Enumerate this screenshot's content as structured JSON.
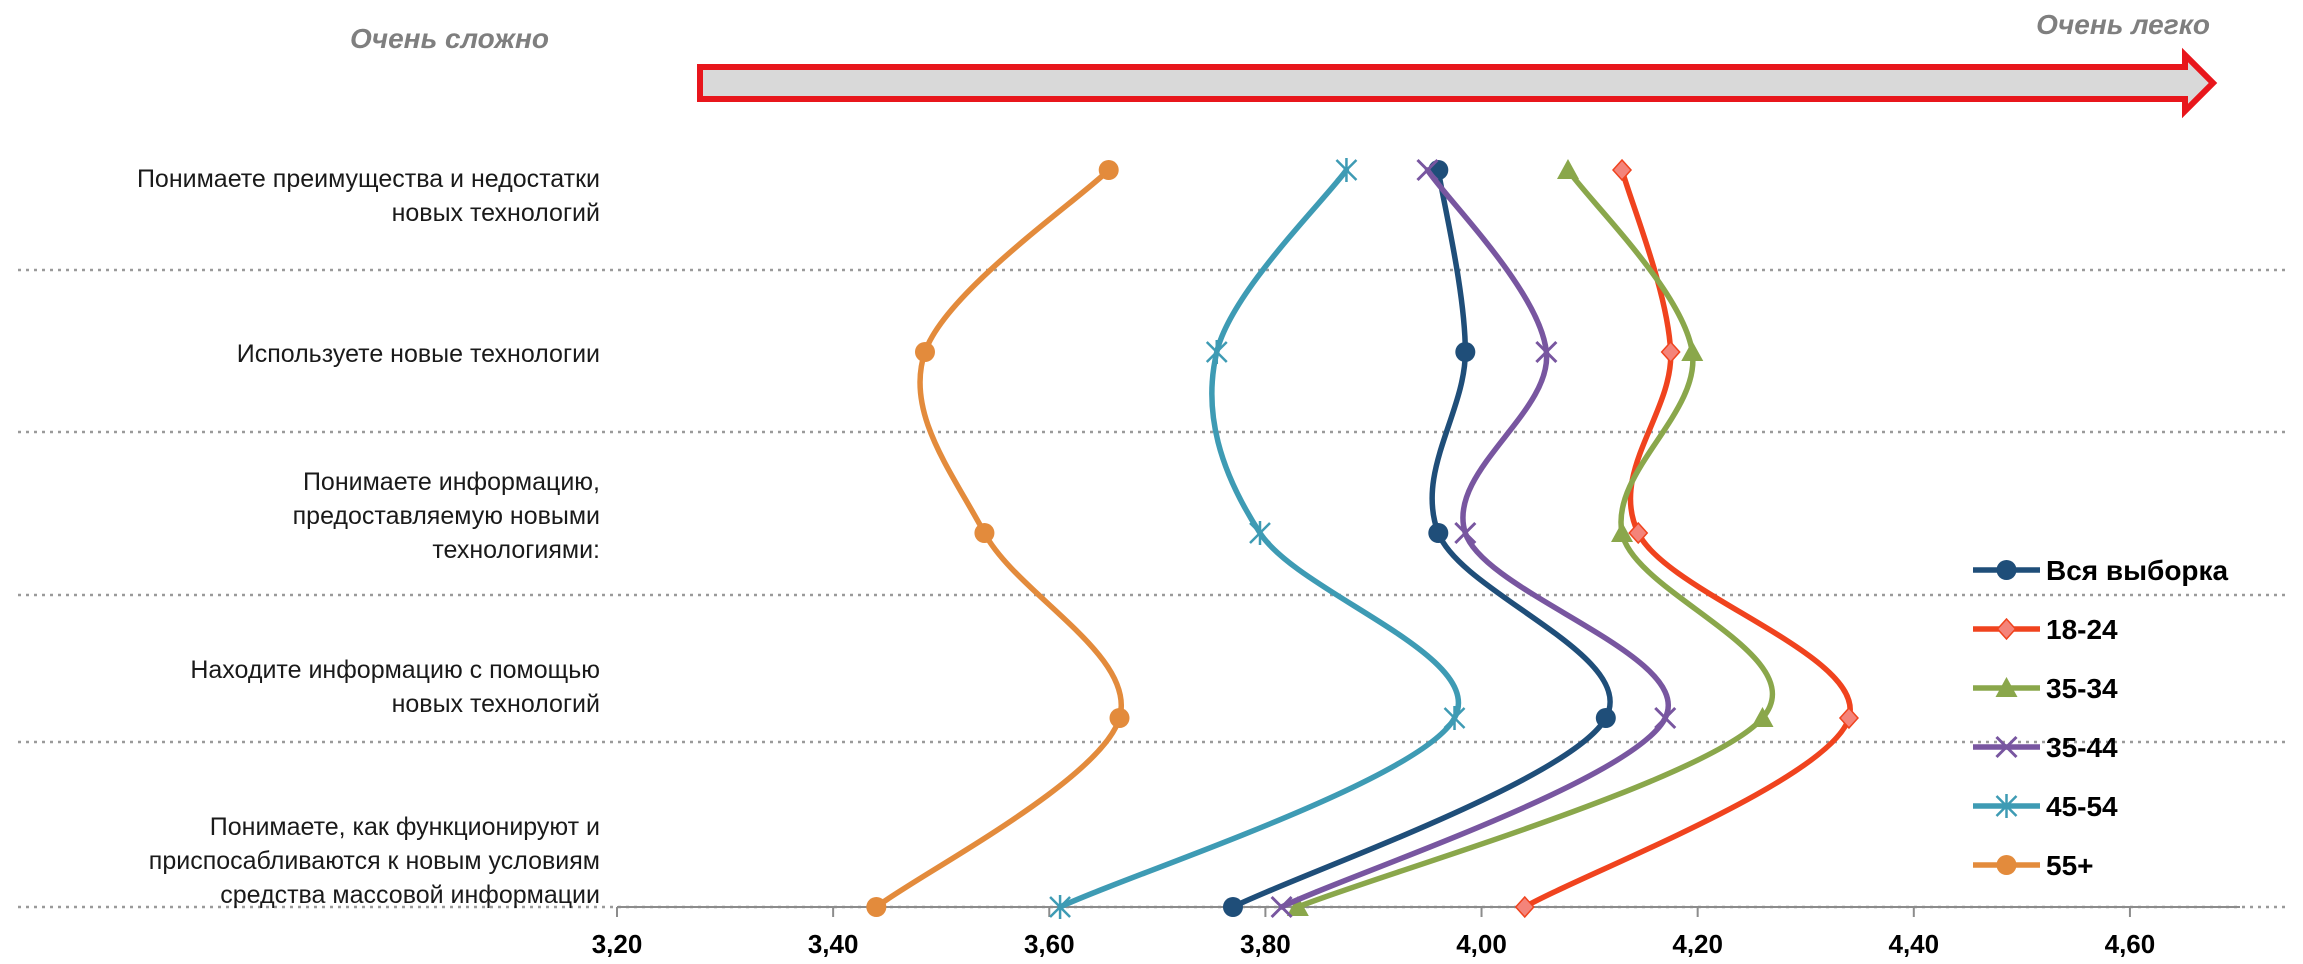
{
  "header": {
    "left_label": "Очень сложно",
    "right_label": "Очень легко",
    "arrow_color": "#e8161c",
    "arrow_fill": "#d9d9d9"
  },
  "chart_data": {
    "type": "line",
    "orientation": "horizontal-values",
    "categories": [
      [
        "Понимаете преимущества и недостатки",
        "новых технологий"
      ],
      [
        "Используете новые технологии"
      ],
      [
        "Понимаете информацию,",
        "предоставляемую новыми",
        "технологиями:"
      ],
      [
        "Находите информацию с помощью",
        "новых технологий"
      ],
      [
        "Понимаете, как функционируют и",
        "приспосабливаются к новым условиям",
        "средства массовой информации"
      ]
    ],
    "xlim": [
      3.2,
      4.7
    ],
    "ticks": [
      3.2,
      3.4,
      3.6,
      3.8,
      4.0,
      4.2,
      4.4,
      4.6
    ],
    "tick_labels": [
      "3,20",
      "3,40",
      "3,60",
      "3,80",
      "4,00",
      "4,20",
      "4,40",
      "4,60"
    ],
    "grid": "horizontal-dotted",
    "legend_position": "right",
    "series": [
      {
        "name": "Вся выборка",
        "color": "#1f4e79",
        "marker": "circle",
        "values": [
          3.96,
          3.985,
          3.96,
          4.115,
          3.77
        ]
      },
      {
        "name": "18-24",
        "color": "#f0431e",
        "marker": "diamond",
        "values": [
          4.13,
          4.175,
          4.145,
          4.34,
          4.04
        ]
      },
      {
        "name": "35-34",
        "color": "#8aa74b",
        "marker": "triangle",
        "values": [
          4.08,
          4.195,
          4.13,
          4.26,
          3.83
        ]
      },
      {
        "name": "35-44",
        "color": "#7856a0",
        "marker": "x",
        "values": [
          3.95,
          4.06,
          3.985,
          4.17,
          3.815
        ]
      },
      {
        "name": "45-54",
        "color": "#3e9bb4",
        "marker": "star",
        "values": [
          3.875,
          3.755,
          3.795,
          3.975,
          3.61
        ]
      },
      {
        "name": "55+",
        "color": "#e38b3c",
        "marker": "circle",
        "values": [
          3.655,
          3.485,
          3.54,
          3.665,
          3.44
        ]
      }
    ]
  }
}
